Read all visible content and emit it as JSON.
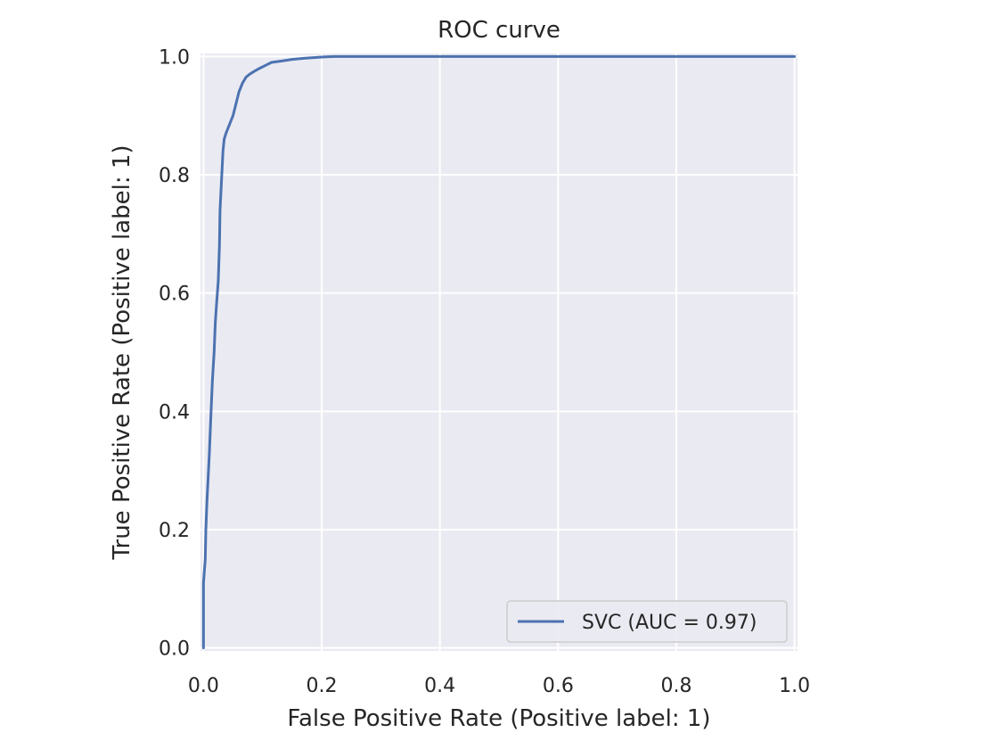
{
  "chart_data": {
    "type": "line",
    "title": "ROC curve",
    "xlabel": "False Positive Rate (Positive label: 1)",
    "ylabel": "True Positive Rate (Positive label: 1)",
    "xlim": [
      0.0,
      1.0
    ],
    "ylim": [
      0.0,
      1.0
    ],
    "x_ticks": [
      "0.0",
      "0.2",
      "0.4",
      "0.6",
      "0.8",
      "1.0"
    ],
    "y_ticks": [
      "0.0",
      "0.2",
      "0.4",
      "0.6",
      "0.8",
      "1.0"
    ],
    "x_tick_values": [
      0.0,
      0.2,
      0.4,
      0.6,
      0.8,
      1.0
    ],
    "y_tick_values": [
      0.0,
      0.2,
      0.4,
      0.6,
      0.8,
      1.0
    ],
    "grid": true,
    "legend_position": "bottom-right",
    "series": [
      {
        "name": "SVC (AUC = 0.97)",
        "color": "#4c72b0",
        "x": [
          0.0,
          0.0,
          0.003,
          0.004,
          0.006,
          0.008,
          0.01,
          0.012,
          0.015,
          0.018,
          0.02,
          0.022,
          0.025,
          0.027,
          0.028,
          0.03,
          0.031,
          0.032,
          0.033,
          0.035,
          0.038,
          0.042,
          0.046,
          0.05,
          0.055,
          0.06,
          0.066,
          0.072,
          0.078,
          0.086,
          0.095,
          0.105,
          0.115,
          0.13,
          0.15,
          0.17,
          0.2,
          0.22,
          0.3,
          0.5,
          0.8,
          1.0
        ],
        "y": [
          0.0,
          0.11,
          0.15,
          0.2,
          0.25,
          0.29,
          0.33,
          0.38,
          0.45,
          0.5,
          0.55,
          0.58,
          0.62,
          0.68,
          0.74,
          0.78,
          0.8,
          0.82,
          0.84,
          0.86,
          0.87,
          0.88,
          0.89,
          0.9,
          0.92,
          0.94,
          0.955,
          0.965,
          0.97,
          0.975,
          0.98,
          0.985,
          0.99,
          0.992,
          0.995,
          0.997,
          0.999,
          1.0,
          1.0,
          1.0,
          1.0,
          1.0
        ]
      }
    ]
  }
}
